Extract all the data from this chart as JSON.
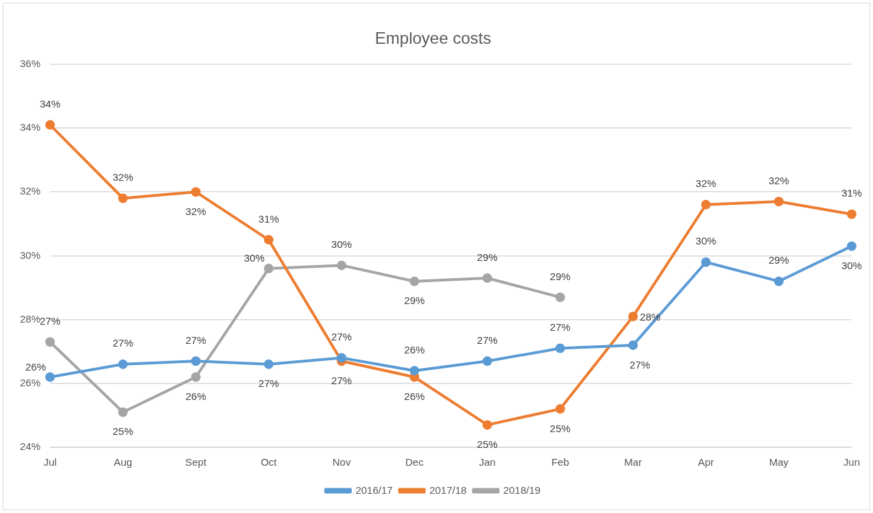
{
  "chart_data": {
    "type": "line",
    "title": "Employee costs",
    "categories": [
      "Jul",
      "Aug",
      "Sept",
      "Oct",
      "Nov",
      "Dec",
      "Jan",
      "Feb",
      "Mar",
      "Apr",
      "May",
      "Jun"
    ],
    "series": [
      {
        "name": "2016/17",
        "color": "#5b9bd5",
        "values": [
          26.2,
          26.6,
          26.7,
          26.6,
          26.8,
          26.4,
          26.7,
          27.1,
          27.2,
          29.8,
          29.2,
          30.3
        ],
        "value_labels": [
          "26%",
          "27%",
          "27%",
          "27%",
          "27%",
          "26%",
          "27%",
          "27%",
          "27%",
          "30%",
          "29%",
          "30%"
        ]
      },
      {
        "name": "2017/18",
        "color": "#ed7d31",
        "values": [
          34.1,
          31.8,
          32.0,
          30.5,
          26.7,
          26.2,
          24.7,
          25.2,
          28.1,
          31.6,
          31.7,
          31.3
        ],
        "value_labels": [
          "34%",
          "32%",
          "32%",
          "31%",
          "27%",
          "26%",
          "25%",
          "25%",
          "28%",
          "32%",
          "32%",
          "31%"
        ]
      },
      {
        "name": "2018/19",
        "color": "#a5a5a5",
        "values": [
          27.3,
          25.1,
          26.2,
          29.6,
          29.7,
          29.2,
          29.3,
          28.7,
          null,
          null,
          null,
          null
        ],
        "value_labels": [
          "27%",
          "25%",
          "26%",
          "30%",
          "30%",
          "29%",
          "29%",
          "29%",
          null,
          null,
          null,
          null
        ]
      }
    ],
    "ylim": [
      24,
      36
    ],
    "yticks": [
      {
        "value": 24,
        "label": "24%"
      },
      {
        "value": 26,
        "label": "26%"
      },
      {
        "value": 28,
        "label": "28%"
      },
      {
        "value": 30,
        "label": "30%"
      },
      {
        "value": 32,
        "label": "32%"
      },
      {
        "value": 34,
        "label": "34%"
      },
      {
        "value": 36,
        "label": "36%"
      }
    ],
    "grid": "y",
    "legend": "bottom",
    "marker": "circle",
    "line_style": "solid"
  }
}
